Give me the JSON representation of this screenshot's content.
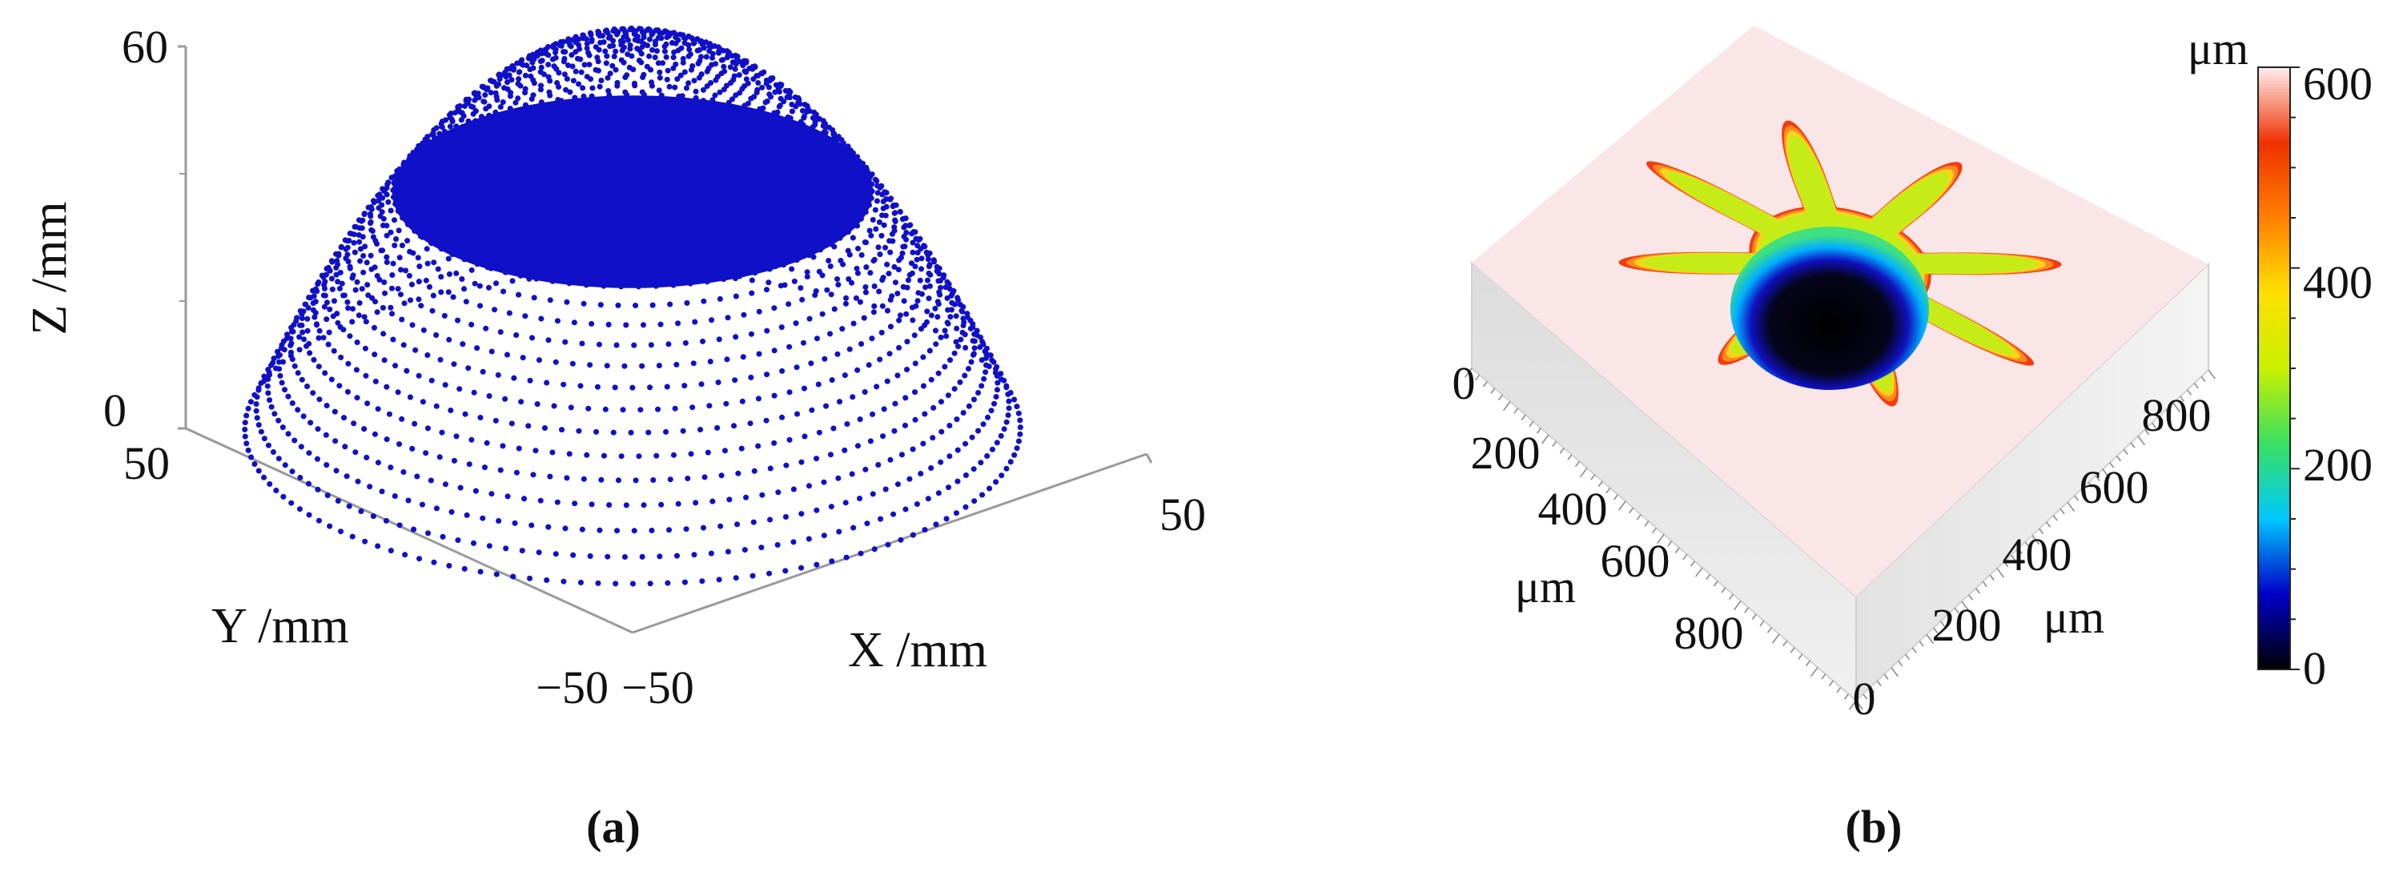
{
  "figure": {
    "panel_a_caption": "(a)",
    "panel_b_caption": "(b)"
  },
  "chart_data": [
    {
      "type": "scatter",
      "subtype": "3d-point-cloud",
      "title": "",
      "surface": "paraboloid dome, z = 60 - 0.0185*(x^2 + y^2)",
      "point_color": "#1010c8",
      "xlabel": "X /mm",
      "ylabel": "Y /mm",
      "zlabel": "Z /mm",
      "xlim": [
        -50,
        50
      ],
      "ylim": [
        -50,
        50
      ],
      "zlim": [
        0,
        60
      ],
      "x_ticks": [
        "−50",
        "50"
      ],
      "y_ticks": [
        "50",
        "−50"
      ],
      "z_ticks": [
        "0",
        "60"
      ],
      "grid": false,
      "legend": "none"
    },
    {
      "type": "heatmap",
      "subtype": "3d-surface-height-map",
      "title": "",
      "feature": "eight-petal gear-shaped groove with central deep hole",
      "xlabel": "μm",
      "ylabel": "μm",
      "x_ticks": [
        "0",
        "200",
        "400",
        "600",
        "800"
      ],
      "y_ticks": [
        "0",
        "200",
        "400",
        "600",
        "800"
      ],
      "xlim": [
        0,
        1000
      ],
      "ylim": [
        0,
        1000
      ],
      "levels": {
        "top_surface_um": 600,
        "petal_floor_um": 300,
        "hole_bottom_um": 0
      },
      "petal_count": 8,
      "colorbar": {
        "unit": "μm",
        "ticks": [
          "0",
          "200",
          "400",
          "600"
        ],
        "range": [
          0,
          600
        ],
        "colors": [
          "#000000",
          "#0000c8",
          "#00c8ff",
          "#38e060",
          "#c8f000",
          "#ffe000",
          "#ff8000",
          "#f03000",
          "#fff0f0"
        ]
      },
      "legend": "colorbar-right"
    }
  ]
}
